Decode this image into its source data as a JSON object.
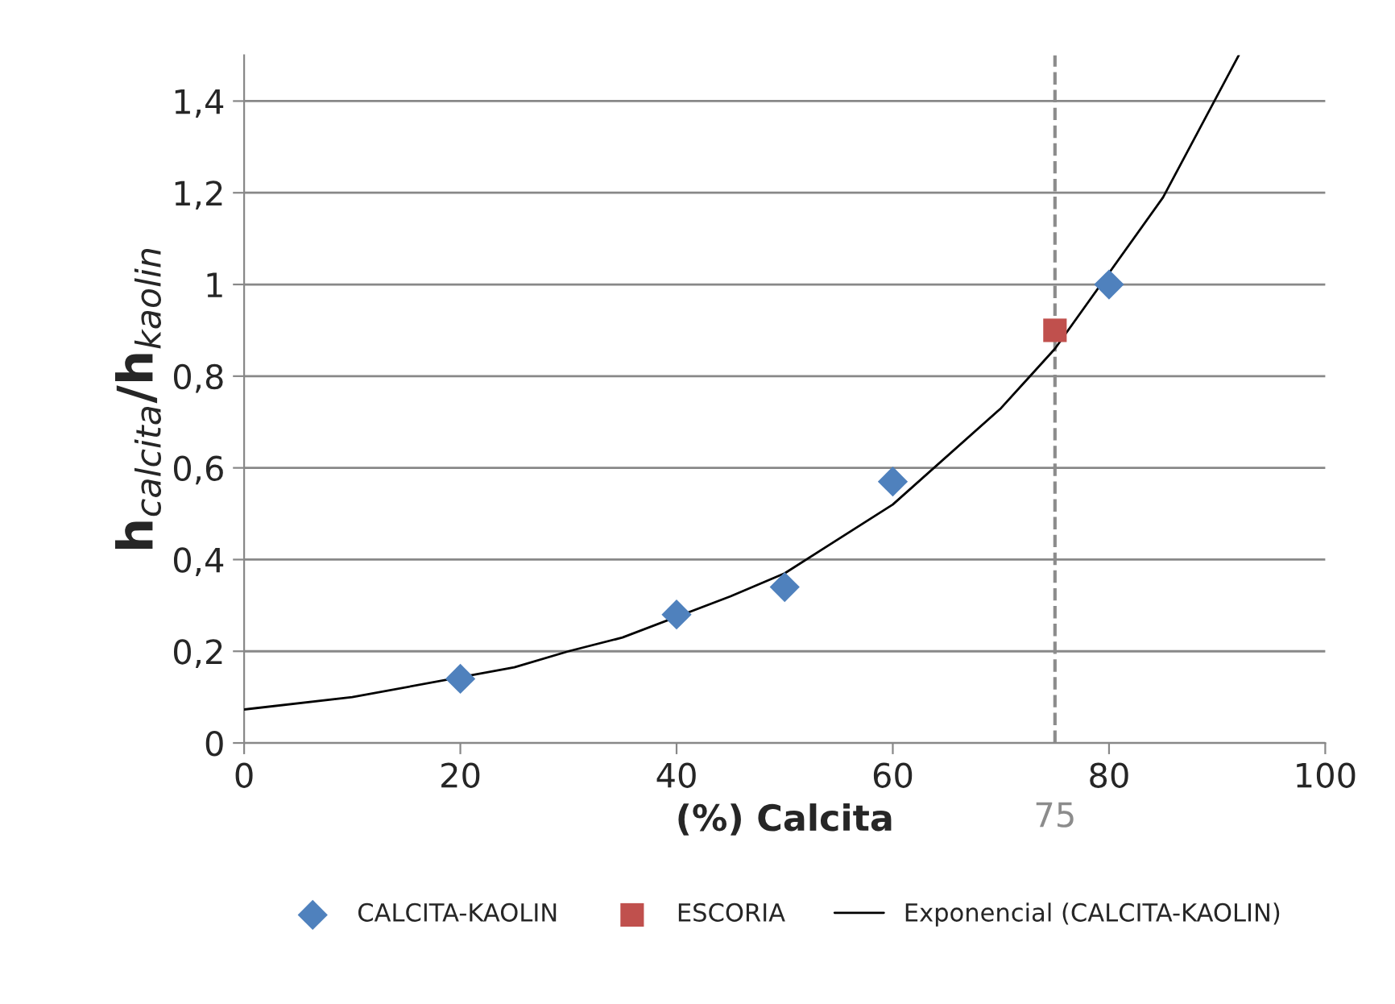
{
  "chart_data": {
    "type": "scatter",
    "xlabel": "(%) Calcita",
    "ylabel": "h$_{calcita}$/h$_{kaolin}$",
    "series": [
      {
        "name": "CALCITA-KAOLIN",
        "marker": "diamond",
        "color": "#4f81bd",
        "x": [
          20,
          40,
          50,
          60,
          80
        ],
        "values": [
          0.14,
          0.28,
          0.34,
          0.57,
          1.0
        ]
      },
      {
        "name": "ESCORIA",
        "marker": "square",
        "color": "#c0504d",
        "x": [
          75
        ],
        "values": [
          0.9
        ]
      },
      {
        "name": "Exponencial (CALCITA-KAOLIN)",
        "type": "line",
        "marker": "none",
        "line_style": "solid",
        "color": "#000000",
        "x": [
          0,
          10,
          25,
          30,
          35,
          45,
          50,
          60,
          70,
          75,
          85,
          92
        ],
        "values": [
          0.073,
          0.1,
          0.165,
          0.2,
          0.23,
          0.32,
          0.37,
          0.52,
          0.73,
          0.86,
          1.19,
          1.5
        ]
      }
    ],
    "xlim": [
      0,
      100
    ],
    "xticks": [
      0,
      20,
      40,
      60,
      80,
      100
    ],
    "ylim": [
      0,
      1.5
    ],
    "yticks": [
      {
        "value": 0,
        "label": "0"
      },
      {
        "value": 0.2,
        "label": "0,2"
      },
      {
        "value": 0.4,
        "label": "0,4"
      },
      {
        "value": 0.6,
        "label": "0,6"
      },
      {
        "value": 0.8,
        "label": "0,8"
      },
      {
        "value": 1,
        "label": "1"
      },
      {
        "value": 1.2,
        "label": "1,2"
      },
      {
        "value": 1.4,
        "label": "1,4"
      }
    ],
    "ref_lines": [
      {
        "axis": "x",
        "value": 75,
        "label": "75",
        "color": "#8c8c8c",
        "line_style": "dashed"
      }
    ],
    "grid": "y",
    "legend": "bottom"
  }
}
